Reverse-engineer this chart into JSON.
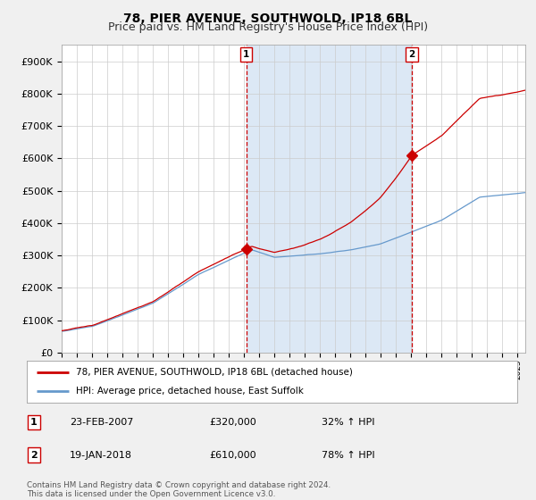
{
  "title": "78, PIER AVENUE, SOUTHWOLD, IP18 6BL",
  "subtitle": "Price paid vs. HM Land Registry's House Price Index (HPI)",
  "ylabel_ticks": [
    "£0",
    "£100K",
    "£200K",
    "£300K",
    "£400K",
    "£500K",
    "£600K",
    "£700K",
    "£800K",
    "£900K"
  ],
  "ytick_values": [
    0,
    100000,
    200000,
    300000,
    400000,
    500000,
    600000,
    700000,
    800000,
    900000
  ],
  "ylim": [
    0,
    950000
  ],
  "xlim_start": 1995.0,
  "xlim_end": 2025.5,
  "sale1_x": 2007.14,
  "sale1_y": 320000,
  "sale2_x": 2018.05,
  "sale2_y": 610000,
  "sale_color": "#cc0000",
  "hpi_color": "#6699cc",
  "shade_color": "#dce8f5",
  "vline_color": "#cc0000",
  "background_color": "#f0f0f0",
  "plot_bg_color": "#ffffff",
  "legend_label_red": "78, PIER AVENUE, SOUTHWOLD, IP18 6BL (detached house)",
  "legend_label_blue": "HPI: Average price, detached house, East Suffolk",
  "table_row1": [
    "1",
    "23-FEB-2007",
    "£320,000",
    "32% ↑ HPI"
  ],
  "table_row2": [
    "2",
    "19-JAN-2018",
    "£610,000",
    "78% ↑ HPI"
  ],
  "footnote": "Contains HM Land Registry data © Crown copyright and database right 2024.\nThis data is licensed under the Open Government Licence v3.0.",
  "grid_color": "#cccccc",
  "title_fontsize": 10,
  "subtitle_fontsize": 9,
  "tick_fontsize": 8
}
